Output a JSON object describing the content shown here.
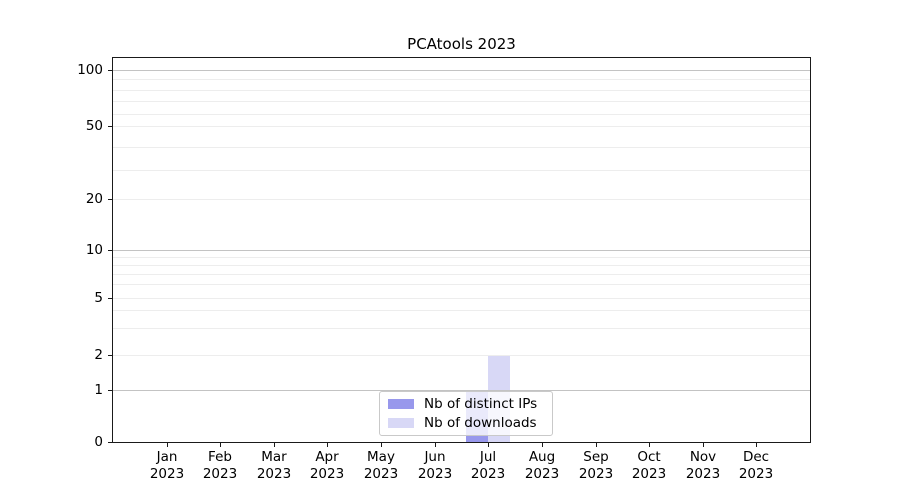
{
  "chart_data": {
    "type": "bar",
    "title": "PCAtools 2023",
    "categories": [
      "Jan 2023",
      "Feb 2023",
      "Mar 2023",
      "Apr 2023",
      "May 2023",
      "Jun 2023",
      "Jul 2023",
      "Aug 2023",
      "Sep 2023",
      "Oct 2023",
      "Nov 2023",
      "Dec 2023"
    ],
    "series": [
      {
        "name": "Nb of distinct IPs",
        "color": "#9898ec",
        "values": [
          0,
          0,
          0,
          0,
          0,
          0,
          1,
          0,
          0,
          0,
          0,
          0
        ]
      },
      {
        "name": "Nb of downloads",
        "color": "#d8d8f6",
        "values": [
          0,
          0,
          0,
          0,
          0,
          0,
          2,
          0,
          0,
          0,
          0,
          0
        ]
      }
    ],
    "y_axis": {
      "scale": "log-like with 0 baseline",
      "tick_labels": [
        "100",
        "50",
        "20",
        "10",
        "5",
        "2",
        "1",
        "0"
      ],
      "tick_values": [
        100,
        50,
        20,
        10,
        5,
        2,
        1,
        0
      ],
      "grid_major": [
        1,
        10,
        100
      ],
      "grid_minor": [
        2,
        3,
        4,
        5,
        6,
        7,
        8,
        9,
        20,
        30,
        40,
        50,
        60,
        70,
        80,
        90
      ],
      "range": [
        0,
        112
      ]
    },
    "x_axis": {
      "label": ""
    },
    "legend": {
      "position": "lower center",
      "entries": [
        "Nb of distinct IPs",
        "Nb of downloads"
      ]
    },
    "grid": true
  }
}
